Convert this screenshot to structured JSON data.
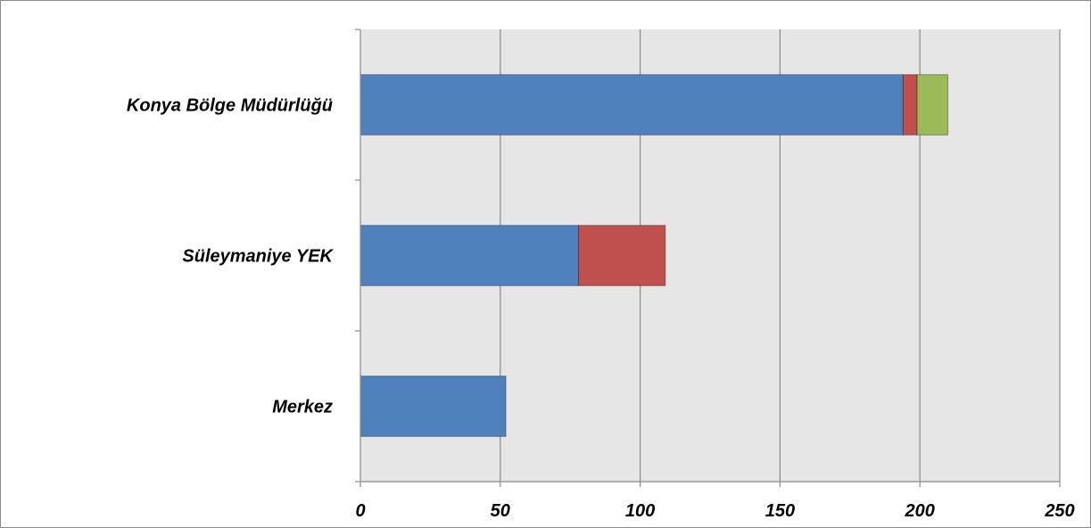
{
  "chart_data": {
    "type": "bar",
    "orientation": "horizontal",
    "stacked": true,
    "title": "",
    "xlabel": "",
    "ylabel": "",
    "categories": [
      "Konya Bölge Müdürlüğü",
      "Süleymaniye YEK",
      "Merkez"
    ],
    "series": [
      {
        "color": "#4f81bd",
        "values": [
          194,
          78,
          52
        ]
      },
      {
        "color": "#c0504d",
        "values": [
          5,
          31,
          0
        ]
      },
      {
        "color": "#9bbb59",
        "values": [
          11,
          0,
          0
        ]
      }
    ],
    "xlim": [
      0,
      250
    ],
    "xticks": [
      "0",
      "50",
      "100",
      "150",
      "200",
      "250"
    ],
    "grid": true,
    "legend": "none",
    "plot_background": "#e6e6e6"
  }
}
